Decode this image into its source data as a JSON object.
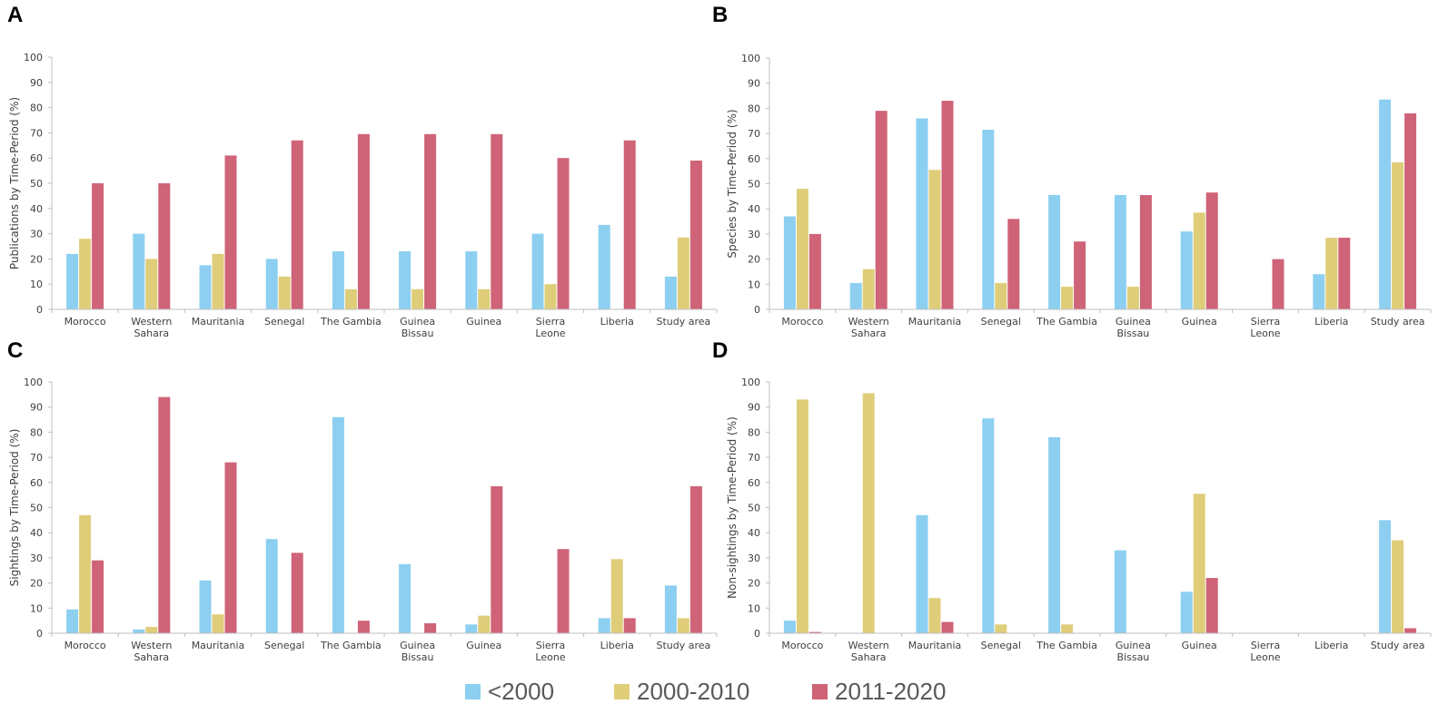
{
  "legend": [
    {
      "key": "lt2000",
      "label": "<2000",
      "color": "#8dcff0"
    },
    {
      "key": "y2000_2010",
      "label": "2000-2010",
      "color": "#dfcd79"
    },
    {
      "key": "y2011_2020",
      "label": "2011-2020",
      "color": "#cf6378"
    }
  ],
  "chart_data": [
    {
      "panel": "A",
      "type": "bar",
      "ylabel": "Publications by Time-Period (%)",
      "ylim": [
        0,
        100
      ],
      "yticks": [
        0,
        10,
        20,
        30,
        40,
        50,
        60,
        70,
        80,
        90,
        100
      ],
      "categories": [
        [
          "Morocco"
        ],
        [
          "Western",
          "Sahara"
        ],
        [
          "Mauritania"
        ],
        [
          "Senegal"
        ],
        [
          "The Gambia"
        ],
        [
          "Guinea",
          "Bissau"
        ],
        [
          "Guinea"
        ],
        [
          "Sierra",
          "Leone"
        ],
        [
          "Liberia"
        ],
        [
          "Study area"
        ]
      ],
      "series": [
        {
          "name": "<2000",
          "values": [
            22,
            30,
            17.5,
            20,
            23,
            23,
            23,
            30,
            33.5,
            13
          ]
        },
        {
          "name": "2000-2010",
          "values": [
            28,
            20,
            22,
            13,
            8,
            8,
            8,
            10,
            0,
            28.5
          ]
        },
        {
          "name": "2011-2020",
          "values": [
            50,
            50,
            61,
            67,
            69.5,
            69.5,
            69.5,
            60,
            67,
            59
          ]
        }
      ]
    },
    {
      "panel": "B",
      "type": "bar",
      "ylabel": "Species by Time-Period (%)",
      "ylim": [
        0,
        100
      ],
      "yticks": [
        0,
        10,
        20,
        30,
        40,
        50,
        60,
        70,
        80,
        90,
        100
      ],
      "categories": [
        [
          "Morocco"
        ],
        [
          "Western",
          "Sahara"
        ],
        [
          "Mauritania"
        ],
        [
          "Senegal"
        ],
        [
          "The Gambia"
        ],
        [
          "Guinea",
          "Bissau"
        ],
        [
          "Guinea"
        ],
        [
          "Sierra",
          "Leone"
        ],
        [
          "Liberia"
        ],
        [
          "Study area"
        ]
      ],
      "series": [
        {
          "name": "<2000",
          "values": [
            37,
            10.5,
            76,
            71.5,
            45.5,
            45.5,
            31,
            0,
            14,
            83.5
          ]
        },
        {
          "name": "2000-2010",
          "values": [
            48,
            16,
            55.5,
            10.5,
            9,
            9,
            38.5,
            0,
            28.5,
            58.5
          ]
        },
        {
          "name": "2011-2020",
          "values": [
            30,
            79,
            83,
            36,
            27,
            45.5,
            46.5,
            20,
            28.5,
            78
          ]
        }
      ]
    },
    {
      "panel": "C",
      "type": "bar",
      "ylabel": "Sightings by Time-Period (%)",
      "ylim": [
        0,
        100
      ],
      "yticks": [
        0,
        10,
        20,
        30,
        40,
        50,
        60,
        70,
        80,
        90,
        100
      ],
      "categories": [
        [
          "Morocco"
        ],
        [
          "Western",
          "Sahara"
        ],
        [
          "Mauritania"
        ],
        [
          "Senegal"
        ],
        [
          "The Gambia"
        ],
        [
          "Guinea",
          "Bissau"
        ],
        [
          "Guinea"
        ],
        [
          "Sierra",
          "Leone"
        ],
        [
          "Liberia"
        ],
        [
          "Study area"
        ]
      ],
      "series": [
        {
          "name": "<2000",
          "values": [
            9.5,
            1.5,
            21,
            37.5,
            86,
            27.5,
            3.5,
            0,
            6,
            19
          ]
        },
        {
          "name": "2000-2010",
          "values": [
            47,
            2.5,
            7.5,
            0,
            0,
            0,
            7,
            0,
            29.5,
            6
          ]
        },
        {
          "name": "2011-2020",
          "values": [
            29,
            94,
            68,
            32,
            5,
            4,
            58.5,
            33.5,
            6,
            58.5
          ]
        }
      ]
    },
    {
      "panel": "D",
      "type": "bar",
      "ylabel": "Non-sightings by Time-Period (%)",
      "ylim": [
        0,
        100
      ],
      "yticks": [
        0,
        10,
        20,
        30,
        40,
        50,
        60,
        70,
        80,
        90,
        100
      ],
      "categories": [
        [
          "Morocco"
        ],
        [
          "Western",
          "Sahara"
        ],
        [
          "Mauritania"
        ],
        [
          "Senegal"
        ],
        [
          "The Gambia"
        ],
        [
          "Guinea",
          "Bissau"
        ],
        [
          "Guinea"
        ],
        [
          "Sierra",
          "Leone"
        ],
        [
          "Liberia"
        ],
        [
          "Study area"
        ]
      ],
      "series": [
        {
          "name": "<2000",
          "values": [
            5,
            0,
            47,
            85.5,
            78,
            33,
            16.5,
            0,
            0,
            45
          ]
        },
        {
          "name": "2000-2010",
          "values": [
            93,
            95.5,
            14,
            3.5,
            3.5,
            0,
            55.5,
            0,
            0,
            37
          ]
        },
        {
          "name": "2011-2020",
          "values": [
            0.5,
            0,
            4.5,
            0,
            0,
            0,
            22,
            0,
            0,
            2
          ]
        }
      ]
    }
  ]
}
